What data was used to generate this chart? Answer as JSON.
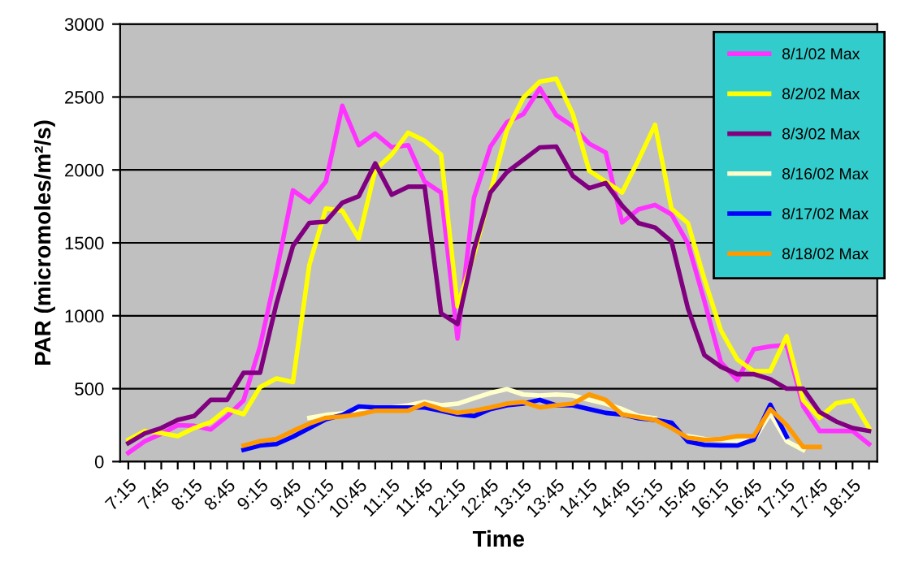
{
  "chart_data": {
    "type": "line",
    "xlabel": "Time",
    "ylabel": "PAR (micromoles/m²/s)",
    "categories": [
      "7:15",
      null,
      "7:45",
      null,
      "8:15",
      null,
      "8:45",
      null,
      "9:15",
      null,
      "9:45",
      null,
      "10:15",
      null,
      "10:45",
      null,
      "11:15",
      null,
      "11:45",
      null,
      "12:15",
      null,
      "12:45",
      null,
      "13:15",
      null,
      "13:45",
      null,
      "14:15",
      null,
      "14:45",
      null,
      "15:15",
      null,
      "15:45",
      null,
      "16:15",
      null,
      "16:45",
      null,
      "17:15",
      null,
      "17:45",
      null,
      "18:15",
      null
    ],
    "ylim": [
      0,
      3000
    ],
    "yticks": [
      0,
      500,
      1000,
      1500,
      2000,
      2500,
      3000
    ],
    "grid": "y",
    "legend": "top right",
    "marker": "none",
    "line_style": "solid",
    "series": [
      {
        "name": "8/1/02 Max",
        "color": "#ff33ff",
        "values": [
          60,
          140,
          190,
          250,
          245,
          220,
          310,
          420,
          790,
          1300,
          1860,
          1780,
          1920,
          2440,
          2170,
          2250,
          2155,
          2170,
          1920,
          1845,
          843,
          1810,
          2160,
          2327,
          2383,
          2560,
          2375,
          2300,
          2180,
          2120,
          1640,
          1730,
          1760,
          1695,
          1495,
          1100,
          680,
          560,
          770,
          790,
          800,
          380,
          210,
          210,
          210,
          120
        ]
      },
      {
        "name": "8/2/02 Max",
        "color": "#ffff00",
        "values": [
          150,
          210,
          195,
          175,
          230,
          270,
          360,
          325,
          510,
          570,
          545,
          1350,
          1735,
          1720,
          1530,
          2000,
          2105,
          2255,
          2200,
          2105,
          1065,
          1420,
          1845,
          2272,
          2495,
          2605,
          2625,
          2385,
          1995,
          1920,
          1845,
          2070,
          2310,
          1735,
          1635,
          1250,
          900,
          700,
          620,
          620,
          860,
          420,
          300,
          400,
          420,
          230
        ]
      },
      {
        "name": "8/3/02 Max",
        "color": "#800080",
        "values": [
          126,
          193,
          230,
          286,
          312,
          423,
          423,
          609,
          609,
          1084,
          1478,
          1637,
          1645,
          1775,
          1820,
          2045,
          1830,
          1885,
          1885,
          1017,
          943,
          1455,
          1845,
          1985,
          2070,
          2155,
          2160,
          1960,
          1875,
          1910,
          1755,
          1635,
          1605,
          1510,
          1050,
          730,
          650,
          600,
          600,
          565,
          500,
          500,
          340,
          275,
          230,
          210
        ]
      },
      {
        "name": "8/16/02 Max",
        "color": "#ffffcc",
        "values": [
          null,
          null,
          null,
          null,
          null,
          null,
          null,
          null,
          null,
          null,
          null,
          300,
          320,
          330,
          360,
          371,
          371,
          386,
          408,
          386,
          397,
          434,
          471,
          497,
          460,
          453,
          460,
          453,
          423,
          397,
          360,
          312,
          297,
          null,
          175,
          155,
          150,
          140,
          150,
          330,
          140,
          80,
          null,
          null,
          null,
          null
        ]
      },
      {
        "name": "8/17/02 Max",
        "color": "#0000ff",
        "values": [
          null,
          null,
          null,
          null,
          null,
          null,
          null,
          80,
          110,
          120,
          170,
          230,
          290,
          320,
          378,
          371,
          371,
          371,
          371,
          349,
          323,
          312,
          360,
          386,
          397,
          423,
          386,
          386,
          360,
          334,
          323,
          297,
          286,
          267,
          137,
          115,
          110,
          110,
          150,
          390,
          170,
          null,
          null,
          null,
          null,
          null
        ]
      },
      {
        "name": "8/18/02 Max",
        "color": "#ff9900",
        "values": [
          null,
          null,
          null,
          null,
          null,
          null,
          null,
          110,
          140,
          155,
          210,
          260,
          300,
          310,
          323,
          349,
          349,
          349,
          397,
          360,
          334,
          349,
          371,
          397,
          408,
          371,
          386,
          397,
          460,
          423,
          323,
          304,
          286,
          230,
          163,
          150,
          155,
          175,
          175,
          360,
          250,
          100,
          100,
          null,
          null,
          null
        ]
      }
    ]
  }
}
